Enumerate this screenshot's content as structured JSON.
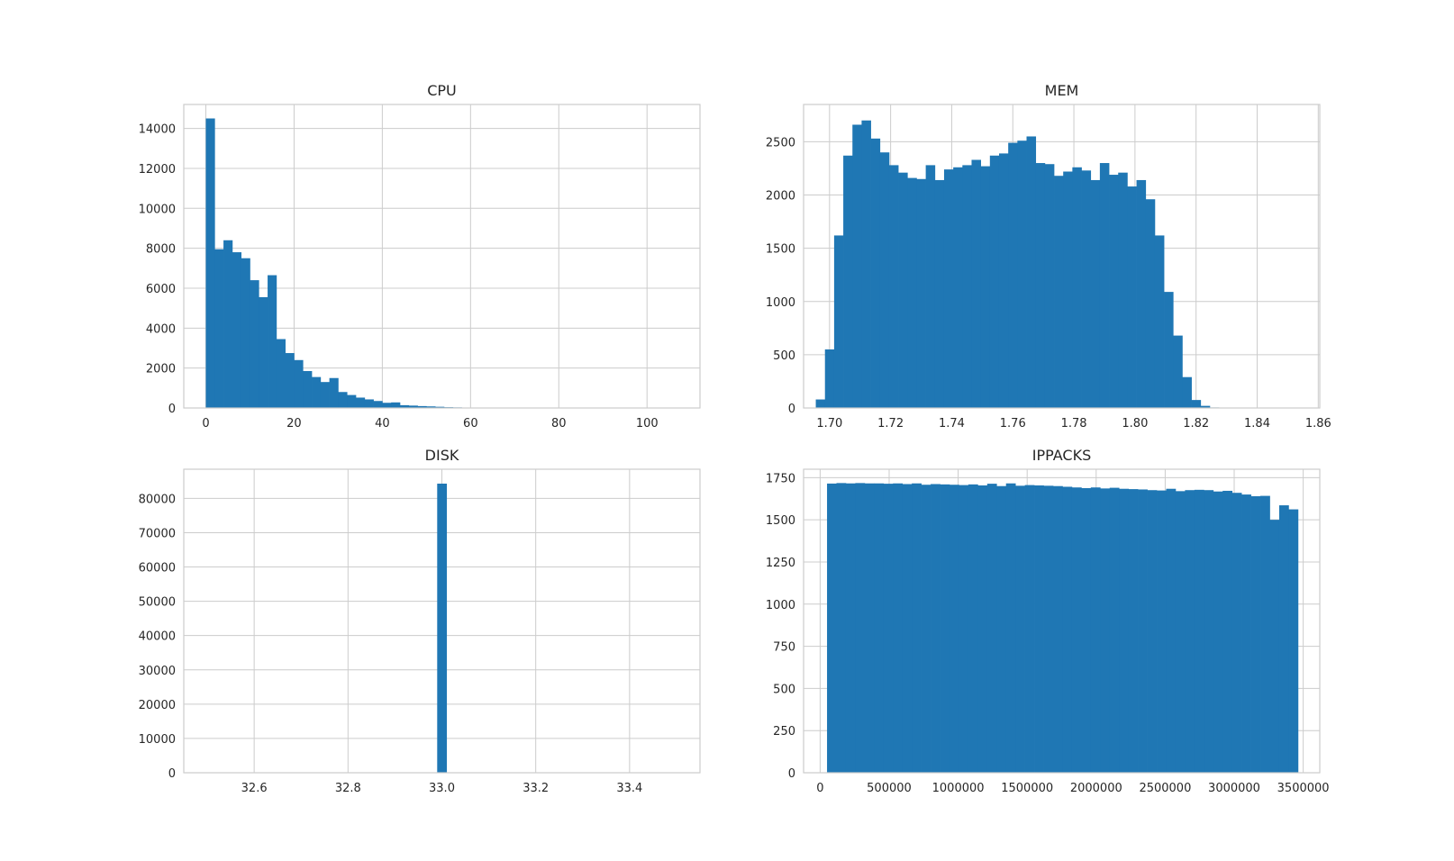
{
  "colors": {
    "bar": "#1f77b4",
    "grid": "#cccccc",
    "text": "#262626",
    "background": "#ffffff"
  },
  "chart_data": [
    {
      "type": "bar",
      "title": "CPU",
      "xlim": [
        -5,
        112
      ],
      "ylim": [
        0,
        15200
      ],
      "xticks": [
        0,
        20,
        40,
        60,
        80,
        100
      ],
      "xtick_labels": [
        "0",
        "20",
        "40",
        "60",
        "80",
        "100"
      ],
      "yticks": [
        0,
        2000,
        4000,
        6000,
        8000,
        10000,
        12000,
        14000
      ],
      "ytick_labels": [
        "0",
        "2000",
        "4000",
        "6000",
        "8000",
        "10000",
        "12000",
        "14000"
      ],
      "bin_start": 0,
      "bin_width": 2,
      "values": [
        14500,
        7950,
        8400,
        7800,
        7500,
        6400,
        5550,
        6650,
        3450,
        2750,
        2400,
        1850,
        1550,
        1300,
        1500,
        800,
        650,
        520,
        430,
        350,
        260,
        280,
        140,
        120,
        95,
        80,
        60,
        40,
        30,
        20,
        15,
        10,
        8,
        6,
        5,
        4,
        3,
        3,
        2,
        2,
        2,
        2,
        1,
        1,
        1,
        1,
        1,
        1,
        1,
        1
      ]
    },
    {
      "type": "bar",
      "title": "MEM",
      "xlim": [
        1.6915,
        1.8605
      ],
      "ylim": [
        0,
        2850
      ],
      "xticks": [
        1.7,
        1.72,
        1.74,
        1.76,
        1.78,
        1.8,
        1.82,
        1.84,
        1.86
      ],
      "xtick_labels": [
        "1.70",
        "1.72",
        "1.74",
        "1.76",
        "1.78",
        "1.80",
        "1.82",
        "1.84",
        "1.86"
      ],
      "yticks": [
        0,
        500,
        1000,
        1500,
        2000,
        2500
      ],
      "ytick_labels": [
        "0",
        "500",
        "1000",
        "1500",
        "2000",
        "2500"
      ],
      "bin_start": 1.6955,
      "bin_width": 0.003,
      "values": [
        80,
        550,
        1620,
        2370,
        2660,
        2700,
        2530,
        2400,
        2280,
        2210,
        2160,
        2150,
        2280,
        2140,
        2240,
        2260,
        2280,
        2330,
        2270,
        2370,
        2390,
        2490,
        2510,
        2550,
        2300,
        2290,
        2180,
        2220,
        2260,
        2230,
        2140,
        2300,
        2190,
        2210,
        2080,
        2140,
        1960,
        1620,
        1090,
        680,
        290,
        75,
        20,
        5
      ]
    },
    {
      "type": "bar",
      "title": "DISK",
      "xlim": [
        32.45,
        33.55
      ],
      "ylim": [
        0,
        88500
      ],
      "xticks": [
        32.6,
        32.8,
        33.0,
        33.2,
        33.4
      ],
      "xtick_labels": [
        "32.6",
        "32.8",
        "33.0",
        "33.2",
        "33.4"
      ],
      "yticks": [
        0,
        10000,
        20000,
        30000,
        40000,
        50000,
        60000,
        70000,
        80000
      ],
      "ytick_labels": [
        "0",
        "10000",
        "20000",
        "30000",
        "40000",
        "50000",
        "60000",
        "70000",
        "80000"
      ],
      "bin_start": 32.99,
      "bin_width": 0.02,
      "values": [
        84300
      ]
    },
    {
      "type": "bar",
      "title": "IPPACKS",
      "xlim": [
        -120000,
        3620000
      ],
      "ylim": [
        0,
        1800
      ],
      "xticks": [
        0,
        500000,
        1000000,
        1500000,
        2000000,
        2500000,
        3000000,
        3500000
      ],
      "xtick_labels": [
        "0",
        "500000",
        "1000000",
        "1500000",
        "2000000",
        "2500000",
        "3000000",
        "3500000"
      ],
      "yticks": [
        0,
        250,
        500,
        750,
        1000,
        1250,
        1500,
        1750
      ],
      "ytick_labels": [
        "0",
        "250",
        "500",
        "750",
        "1000",
        "1250",
        "1500",
        "1750"
      ],
      "bin_start": 50000,
      "bin_width": 68250,
      "values": [
        1715,
        1718,
        1716,
        1718,
        1716,
        1716,
        1714,
        1716,
        1712,
        1716,
        1708,
        1712,
        1710,
        1708,
        1706,
        1710,
        1704,
        1714,
        1700,
        1716,
        1702,
        1706,
        1704,
        1702,
        1700,
        1696,
        1692,
        1688,
        1692,
        1686,
        1690,
        1684,
        1682,
        1680,
        1676,
        1674,
        1684,
        1670,
        1676,
        1678,
        1676,
        1668,
        1672,
        1660,
        1650,
        1640,
        1642,
        1500,
        1586,
        1562
      ]
    }
  ]
}
